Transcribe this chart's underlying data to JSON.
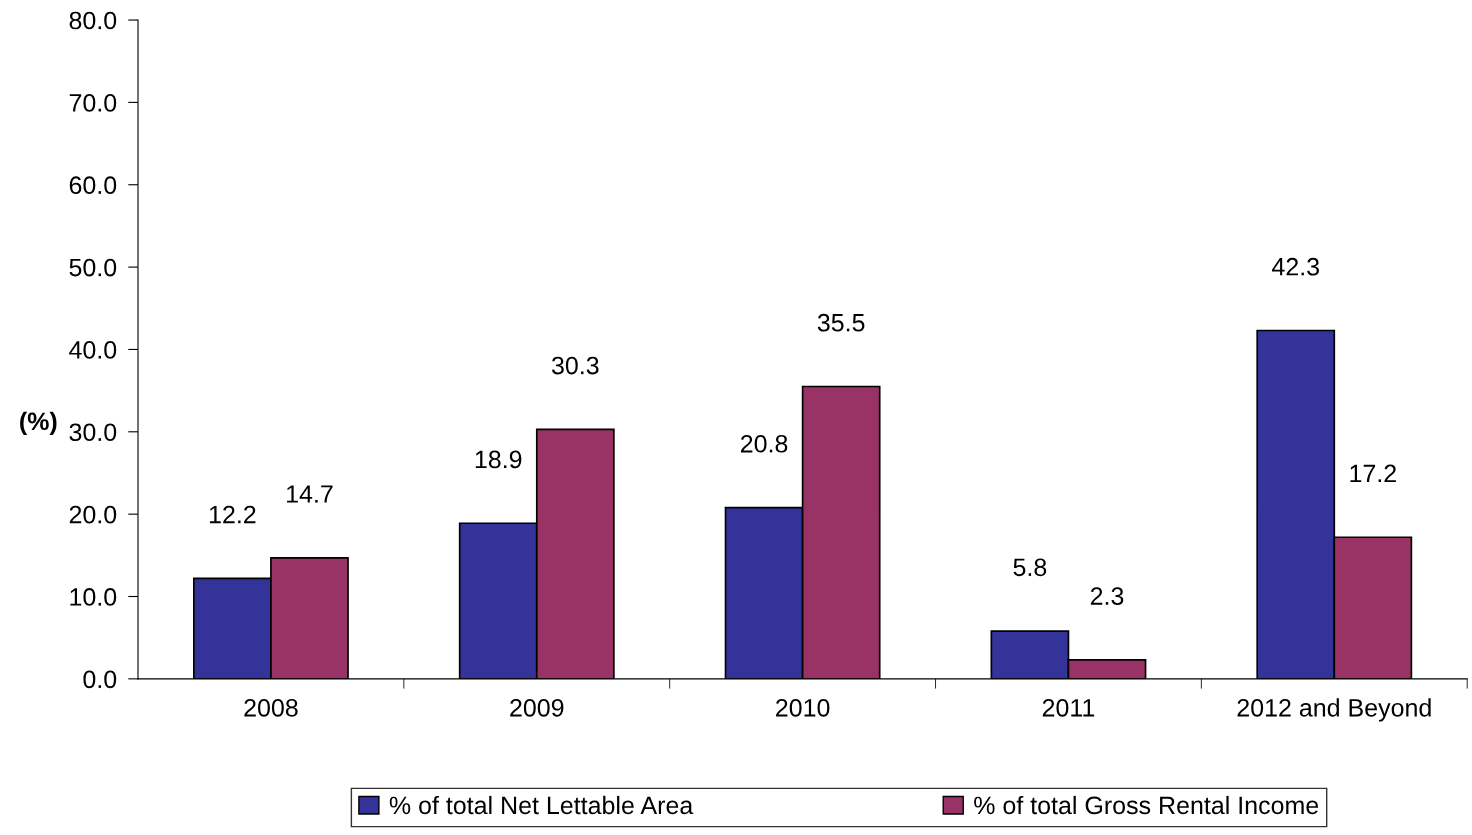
{
  "chart_data": {
    "type": "bar",
    "ylabel": "(%)",
    "categories": [
      "2008",
      "2009",
      "2010",
      "2011",
      "2012 and Beyond"
    ],
    "series": [
      {
        "name": "% of total Net Lettable Area",
        "color": "#333399",
        "values": [
          12.2,
          18.9,
          20.8,
          5.8,
          42.3
        ]
      },
      {
        "name": "% of total Gross Rental Income",
        "color": "#993366",
        "values": [
          14.7,
          30.3,
          35.5,
          2.3,
          17.2
        ]
      }
    ],
    "ylim": [
      0,
      80
    ],
    "yticks": [
      {
        "value": 0,
        "label": "0.0"
      },
      {
        "value": 10,
        "label": "10.0"
      },
      {
        "value": 20,
        "label": "20.0"
      },
      {
        "value": 30,
        "label": "30.0"
      },
      {
        "value": 40,
        "label": "40.0"
      },
      {
        "value": 50,
        "label": "50.0"
      },
      {
        "value": 60,
        "label": "60.0"
      },
      {
        "value": 70,
        "label": "70.0"
      },
      {
        "value": 80,
        "label": "80.0"
      }
    ],
    "data_labels": true,
    "grid": false,
    "legend": "bottom"
  }
}
